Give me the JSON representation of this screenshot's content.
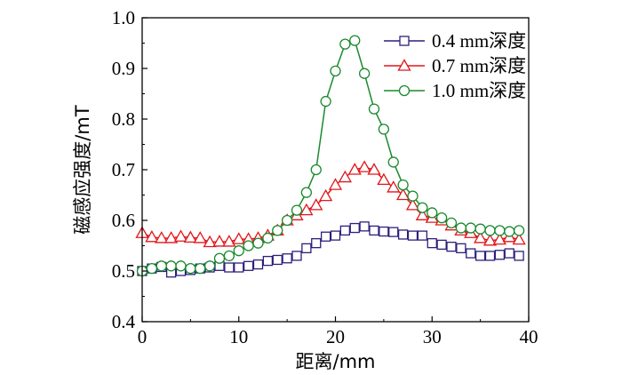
{
  "chart_data": {
    "type": "line",
    "title": "",
    "xlabel": "距离/mm",
    "ylabel": "磁感应强度/mT",
    "xlim": [
      0,
      40
    ],
    "ylim": [
      0.4,
      1.0
    ],
    "xticks": [
      0,
      10,
      20,
      30,
      40
    ],
    "yticks": [
      0.4,
      0.5,
      0.6,
      0.7,
      0.8,
      0.9,
      1.0
    ],
    "xtick_labels": [
      "0",
      "10",
      "20",
      "30",
      "40"
    ],
    "ytick_labels": [
      "0.4",
      "0.5",
      "0.6",
      "0.7",
      "0.8",
      "0.9",
      "1.0"
    ],
    "grid": false,
    "legend_position": "top-right",
    "x": [
      0,
      1,
      2,
      3,
      4,
      5,
      6,
      7,
      8,
      9,
      10,
      11,
      12,
      13,
      14,
      15,
      16,
      17,
      18,
      19,
      20,
      21,
      22,
      23,
      24,
      25,
      26,
      27,
      28,
      29,
      30,
      31,
      32,
      33,
      34,
      35,
      36,
      37,
      38,
      39
    ],
    "series": [
      {
        "name": "0.4 mm深度",
        "color": "#2e1f7a",
        "marker": "square",
        "values": [
          0.5,
          0.505,
          0.508,
          0.497,
          0.5,
          0.502,
          0.505,
          0.507,
          0.51,
          0.507,
          0.507,
          0.51,
          0.513,
          0.52,
          0.522,
          0.525,
          0.53,
          0.545,
          0.555,
          0.568,
          0.57,
          0.58,
          0.585,
          0.588,
          0.58,
          0.578,
          0.577,
          0.572,
          0.57,
          0.57,
          0.555,
          0.552,
          0.548,
          0.545,
          0.535,
          0.53,
          0.53,
          0.532,
          0.535,
          0.53
        ]
      },
      {
        "name": "0.7 mm深度",
        "color": "#e0161b",
        "marker": "triangle",
        "values": [
          0.575,
          0.567,
          0.565,
          0.565,
          0.568,
          0.566,
          0.565,
          0.557,
          0.558,
          0.558,
          0.563,
          0.563,
          0.565,
          0.57,
          0.58,
          0.6,
          0.61,
          0.62,
          0.63,
          0.648,
          0.67,
          0.685,
          0.7,
          0.705,
          0.7,
          0.68,
          0.665,
          0.65,
          0.63,
          0.61,
          0.605,
          0.6,
          0.59,
          0.58,
          0.575,
          0.565,
          0.56,
          0.562,
          0.567,
          0.562
        ]
      },
      {
        "name": "1.0 mm深度",
        "color": "#1a8a2e",
        "marker": "circle",
        "values": [
          0.5,
          0.505,
          0.51,
          0.51,
          0.51,
          0.505,
          0.505,
          0.51,
          0.525,
          0.53,
          0.54,
          0.55,
          0.555,
          0.565,
          0.58,
          0.6,
          0.62,
          0.655,
          0.7,
          0.835,
          0.895,
          0.948,
          0.955,
          0.89,
          0.82,
          0.78,
          0.715,
          0.67,
          0.648,
          0.625,
          0.615,
          0.605,
          0.595,
          0.585,
          0.585,
          0.583,
          0.58,
          0.58,
          0.578,
          0.58
        ]
      }
    ]
  }
}
